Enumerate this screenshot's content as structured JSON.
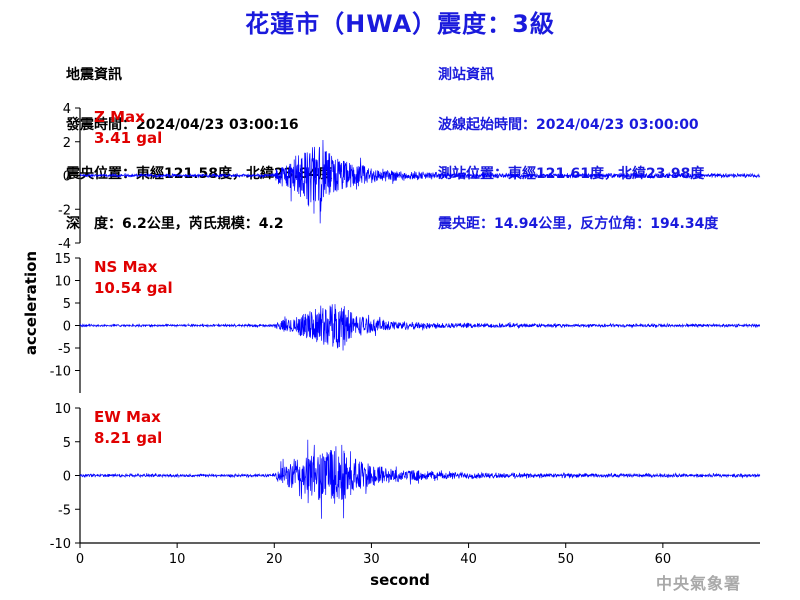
{
  "title": "花蓮市（HWA）震度：3級",
  "quake_info": {
    "heading": "地震資訊",
    "origin_time": "發震時間：2024/04/23 03:00:16",
    "epicenter": "震央位置：東經121.58度，北緯23.84度",
    "depth_magnitude": "深　度：6.2公里，芮氏規模：4.2"
  },
  "station_info": {
    "heading": "測站資訊",
    "wave_start": "波線起始時間：2024/04/23 03:00:00",
    "station_location": "測站位置：東經121.61度，北緯23.98度",
    "distance_azimuth": "震央距：14.94公里，反方位角：194.34度"
  },
  "watermark": "中央氣象署",
  "colors": {
    "title": "#1a1adc",
    "trace": "#0000ff",
    "peak_label": "#e00000",
    "axis": "#000000",
    "watermark": "#a9a9a9"
  },
  "chart_data": {
    "type": "line",
    "xlabel": "second",
    "ylabel": "acceleration",
    "xlim": [
      0,
      70
    ],
    "x_ticks": [
      0,
      10,
      20,
      30,
      40,
      50,
      60
    ],
    "grid": false,
    "panels": [
      {
        "name": "Z Max",
        "peak": "3.41 gal",
        "ylim": [
          -4,
          4
        ],
        "y_ticks": [
          4,
          2,
          0,
          -2,
          -4
        ],
        "noise": 0.12,
        "envelope": [
          [
            0,
            0.1
          ],
          [
            19.8,
            0.1
          ],
          [
            20.5,
            1.0
          ],
          [
            22,
            1.8
          ],
          [
            24.2,
            3.4
          ],
          [
            26,
            2.2
          ],
          [
            28,
            1.4
          ],
          [
            30,
            0.8
          ],
          [
            33,
            0.45
          ],
          [
            36,
            0.3
          ],
          [
            40,
            0.22
          ],
          [
            46,
            0.15
          ],
          [
            52,
            0.14
          ],
          [
            56,
            0.2
          ],
          [
            62,
            0.17
          ],
          [
            70,
            0.12
          ]
        ]
      },
      {
        "name": "NS Max",
        "peak": "10.54 gal",
        "ylim": [
          -15,
          15
        ],
        "y_ticks": [
          15,
          10,
          5,
          0,
          -5,
          -10
        ],
        "noise": 0.3,
        "envelope": [
          [
            0,
            0.3
          ],
          [
            19.8,
            0.3
          ],
          [
            20.8,
            2.2
          ],
          [
            23,
            4.5
          ],
          [
            25.5,
            8.5
          ],
          [
            27,
            9.5
          ],
          [
            28,
            5.0
          ],
          [
            30,
            2.6
          ],
          [
            33,
            1.5
          ],
          [
            36,
            1.1
          ],
          [
            40,
            0.8
          ],
          [
            46,
            0.6
          ],
          [
            52,
            0.5
          ],
          [
            60,
            0.45
          ],
          [
            70,
            0.35
          ]
        ]
      },
      {
        "name": "EW Max",
        "peak": "8.21 gal",
        "ylim": [
          -10,
          10
        ],
        "y_ticks": [
          10,
          5,
          0,
          -5,
          -10
        ],
        "noise": 0.25,
        "envelope": [
          [
            0,
            0.25
          ],
          [
            19.8,
            0.25
          ],
          [
            20.5,
            2.0
          ],
          [
            22,
            4.0
          ],
          [
            24.5,
            6.5
          ],
          [
            26.5,
            8.2
          ],
          [
            28,
            5.0
          ],
          [
            30,
            2.8
          ],
          [
            33,
            1.5
          ],
          [
            36,
            1.0
          ],
          [
            40,
            0.7
          ],
          [
            46,
            0.5
          ],
          [
            52,
            0.4
          ],
          [
            60,
            0.35
          ],
          [
            70,
            0.3
          ]
        ]
      }
    ]
  }
}
